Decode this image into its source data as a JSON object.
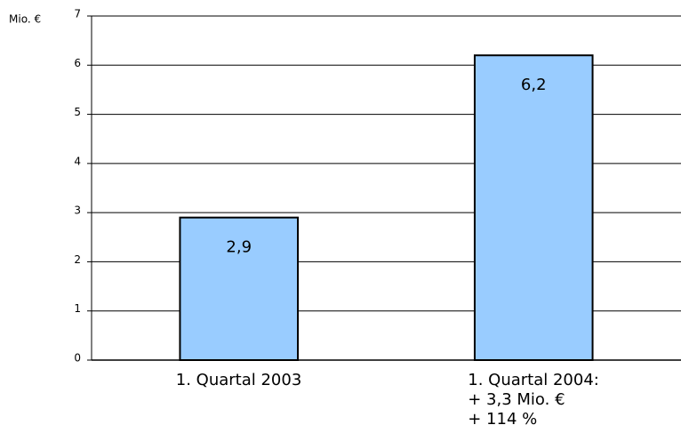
{
  "chart_data": {
    "type": "bar",
    "y_axis_label": "Mio. €",
    "categories": [
      "1. Quartal 2003",
      "1. Quartal 2004:\n+ 3,3 Mio. €\n+ 114 %"
    ],
    "values": [
      2.9,
      6.2
    ],
    "value_labels": [
      "2,9",
      "6,2"
    ],
    "color": "#99ccff",
    "ylim": [
      0,
      7
    ],
    "yticks": [
      0,
      1,
      2,
      3,
      4,
      5,
      6,
      7
    ],
    "grid": true
  }
}
